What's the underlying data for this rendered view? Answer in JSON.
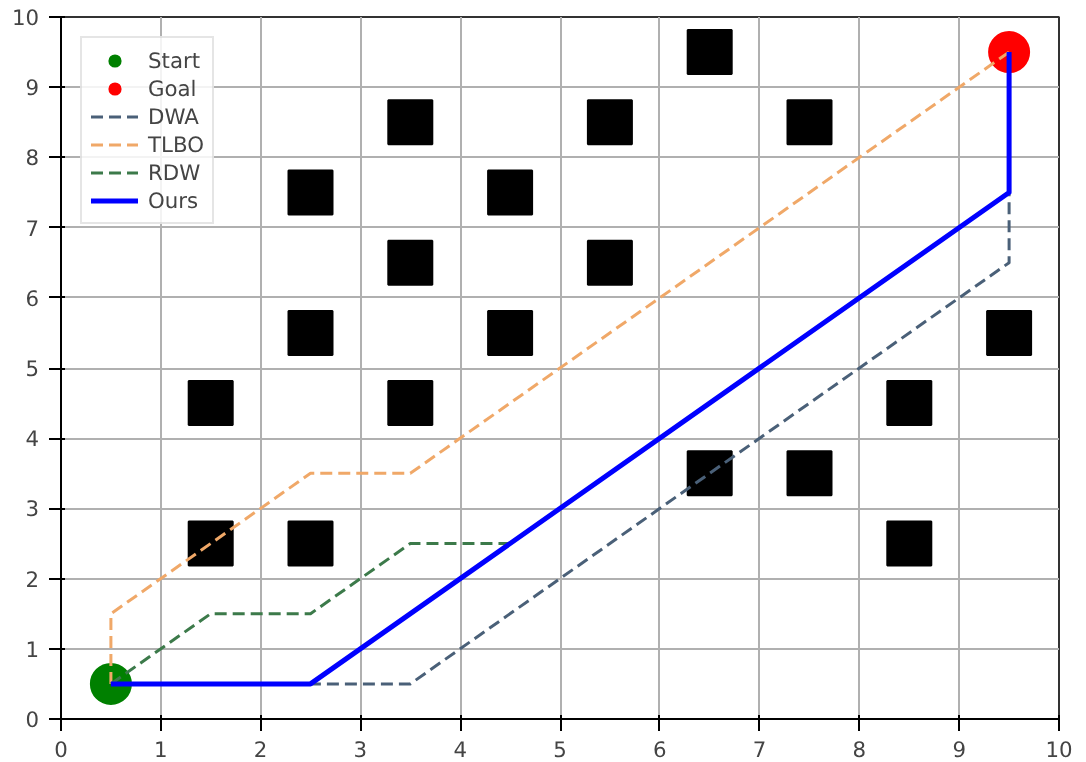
{
  "chart_data": {
    "type": "line",
    "xlim": [
      0,
      10
    ],
    "ylim": [
      0,
      10
    ],
    "xticks": [
      0,
      1,
      2,
      3,
      4,
      5,
      6,
      7,
      8,
      9,
      10
    ],
    "yticks": [
      0,
      1,
      2,
      3,
      4,
      5,
      6,
      7,
      8,
      9,
      10
    ],
    "grid": true,
    "legend": "top left",
    "series": [
      {
        "type": "scatter",
        "marker": "square",
        "color": "#000000",
        "x": [
          6.5,
          3.5,
          5.5,
          7.5,
          2.5,
          4.5,
          3.5,
          5.5,
          2.5,
          4.5,
          9.5,
          1.5,
          3.5,
          8.5,
          6.5,
          7.5,
          1.5,
          2.5,
          8.5
        ],
        "values": [
          9.5,
          8.5,
          8.5,
          8.5,
          7.5,
          7.5,
          6.5,
          6.5,
          5.5,
          5.5,
          5.5,
          4.5,
          4.5,
          4.5,
          3.5,
          3.5,
          2.5,
          2.5,
          2.5
        ]
      },
      {
        "name": "Start",
        "type": "scatter",
        "marker": "circle",
        "color": "#008000",
        "x": [
          0.5
        ],
        "values": [
          0.5
        ]
      },
      {
        "name": "Goal",
        "type": "scatter",
        "marker": "circle",
        "color": "#ff0000",
        "x": [
          9.5
        ],
        "values": [
          9.5
        ]
      },
      {
        "name": "DWA",
        "line_style": "dashed",
        "color": "#4a6078",
        "x": [
          0.5,
          3.5,
          9.5,
          9.5
        ],
        "values": [
          0.5,
          0.5,
          6.5,
          9.5
        ]
      },
      {
        "name": "TLBO",
        "line_style": "dashed",
        "color": "#f0a868",
        "x": [
          0.5,
          0.5,
          2.5,
          3.5,
          9.5
        ],
        "values": [
          0.5,
          1.5,
          3.5,
          3.5,
          9.5
        ]
      },
      {
        "name": "RDW",
        "line_style": "dashed",
        "color": "#3c7a4a",
        "x": [
          0.5,
          1.5,
          2.5,
          3.5,
          4.5
        ],
        "values": [
          0.5,
          1.5,
          1.5,
          2.5,
          2.5
        ]
      },
      {
        "name": "Ours",
        "line_style": "solid",
        "color": "#0000ff",
        "x": [
          0.5,
          2.5,
          9.5,
          9.5
        ],
        "values": [
          0.5,
          0.5,
          7.5,
          9.5
        ]
      }
    ]
  }
}
